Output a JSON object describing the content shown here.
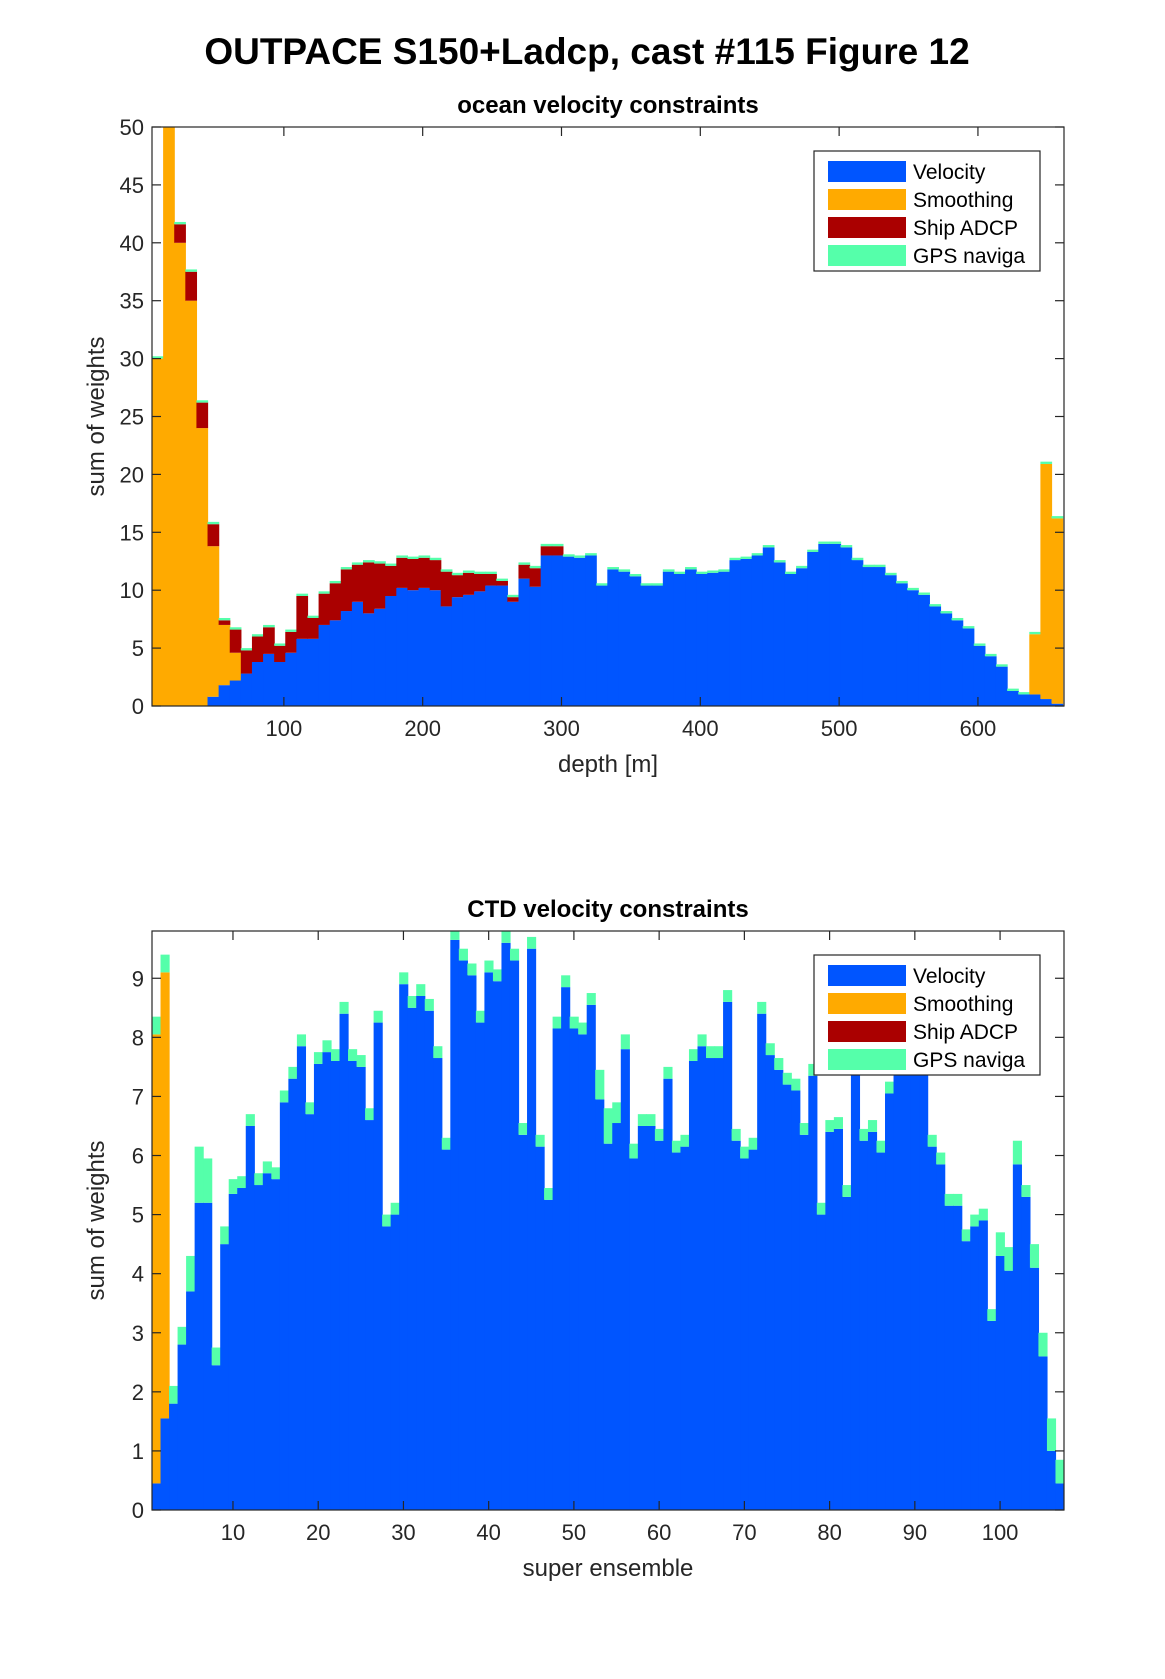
{
  "title": "OUTPACE S150+Ladcp, cast #115  Figure 12",
  "colors": {
    "Velocity": "#0055ff",
    "Smoothing": "#ffaa00",
    "Ship ADCP": "#aa0000",
    "GPS naviga": "#55ffaa"
  },
  "chart_data": [
    {
      "type": "bar",
      "stacked": true,
      "title": "ocean velocity constraints",
      "xlabel": "depth [m]",
      "ylabel": "sum of weights",
      "xlim": [
        5,
        662
      ],
      "ylim": [
        0,
        50
      ],
      "bar_width": 8,
      "xticks": [
        100,
        200,
        300,
        400,
        500,
        600
      ],
      "yticks": [
        0,
        5,
        10,
        15,
        20,
        25,
        30,
        35,
        40,
        45,
        50
      ],
      "legend": {
        "location": "top-right",
        "entries": [
          "Velocity",
          "Smoothing",
          "Ship ADCP",
          "GPS naviga"
        ]
      },
      "x": [
        9,
        17,
        25,
        33,
        41,
        49,
        57,
        65,
        73,
        81,
        89,
        97,
        105,
        113,
        121,
        129,
        137,
        145,
        153,
        161,
        169,
        177,
        185,
        193,
        201,
        209,
        217,
        225,
        233,
        241,
        249,
        257,
        265,
        273,
        281,
        289,
        297,
        305,
        313,
        321,
        329,
        337,
        345,
        353,
        361,
        369,
        377,
        385,
        393,
        401,
        409,
        417,
        425,
        433,
        441,
        449,
        457,
        465,
        473,
        481,
        489,
        497,
        505,
        513,
        521,
        529,
        537,
        545,
        553,
        561,
        569,
        577,
        585,
        593,
        601,
        609,
        617,
        625,
        633,
        641,
        649,
        657
      ],
      "series": [
        {
          "name": "Velocity",
          "values": [
            0,
            0,
            0,
            0,
            0,
            0.8,
            1.8,
            2.2,
            2.8,
            3.8,
            4.5,
            3.8,
            4.6,
            5.8,
            5.8,
            7.0,
            7.4,
            8.2,
            9.0,
            8.0,
            8.4,
            9.5,
            10.2,
            10.0,
            10.2,
            10.0,
            8.6,
            9.4,
            9.6,
            9.9,
            10.4,
            10.4,
            9.0,
            11.0,
            10.3,
            13.0,
            13.0,
            12.9,
            12.8,
            13.0,
            10.4,
            11.8,
            11.6,
            11.2,
            10.4,
            10.4,
            11.6,
            11.4,
            11.8,
            11.4,
            11.5,
            11.6,
            12.6,
            12.7,
            13.0,
            13.7,
            12.4,
            11.4,
            11.9,
            13.3,
            14.0,
            14.0,
            13.7,
            12.6,
            12.0,
            12.0,
            11.3,
            10.6,
            10.0,
            9.6,
            8.6,
            8.0,
            7.4,
            6.7,
            5.2,
            4.3,
            3.4,
            1.3,
            1.0,
            1.0,
            0.6,
            0.2
          ]
        },
        {
          "name": "Smoothing",
          "values": [
            30,
            50,
            40,
            35,
            24,
            13,
            5.2,
            2.4,
            0,
            0,
            0,
            0,
            0,
            0,
            0,
            0,
            0,
            0,
            0,
            0,
            0,
            0,
            0,
            0,
            0,
            0,
            0,
            0,
            0,
            0,
            0,
            0,
            0,
            0,
            0,
            0,
            0,
            0,
            0,
            0,
            0,
            0,
            0,
            0,
            0,
            0,
            0,
            0,
            0,
            0,
            0,
            0,
            0,
            0,
            0,
            0,
            0,
            0,
            0,
            0,
            0,
            0,
            0,
            0,
            0,
            0,
            0,
            0,
            0,
            0,
            0,
            0,
            0,
            0,
            0,
            0,
            0,
            0,
            0,
            5.2,
            20.3,
            16.0
          ]
        },
        {
          "name": "Ship ADCP",
          "values": [
            0,
            0,
            1.6,
            2.5,
            2.2,
            1.9,
            0.4,
            2.0,
            2.0,
            2.2,
            2.3,
            1.4,
            1.8,
            3.7,
            1.8,
            2.7,
            3.2,
            3.6,
            3.2,
            4.4,
            3.9,
            2.6,
            2.6,
            2.7,
            2.6,
            2.6,
            3.0,
            1.9,
            1.9,
            1.5,
            1.0,
            0.4,
            0.4,
            1.2,
            1.6,
            0.8,
            0.8,
            0,
            0,
            0,
            0,
            0,
            0,
            0,
            0,
            0,
            0,
            0,
            0,
            0,
            0,
            0,
            0,
            0,
            0,
            0,
            0,
            0,
            0,
            0,
            0,
            0,
            0,
            0,
            0,
            0,
            0,
            0,
            0,
            0,
            0,
            0,
            0,
            0,
            0,
            0,
            0,
            0,
            0,
            0,
            0,
            0
          ]
        },
        {
          "name": "GPS naviga",
          "values": [
            0.2,
            0.2,
            0.2,
            0.2,
            0.2,
            0.2,
            0.2,
            0.2,
            0.2,
            0.2,
            0.2,
            0.2,
            0.2,
            0.2,
            0.2,
            0.2,
            0.2,
            0.2,
            0.2,
            0.2,
            0.2,
            0.2,
            0.2,
            0.2,
            0.2,
            0.2,
            0.2,
            0.2,
            0.2,
            0.2,
            0.2,
            0.2,
            0.2,
            0.2,
            0.2,
            0.2,
            0.2,
            0.2,
            0.2,
            0.2,
            0.2,
            0.2,
            0.2,
            0.2,
            0.2,
            0.2,
            0.2,
            0.2,
            0.2,
            0.2,
            0.2,
            0.2,
            0.2,
            0.2,
            0.2,
            0.2,
            0.2,
            0.2,
            0.2,
            0.2,
            0.2,
            0.2,
            0.2,
            0.2,
            0.2,
            0.2,
            0.2,
            0.2,
            0.2,
            0.2,
            0.2,
            0.2,
            0.2,
            0.2,
            0.2,
            0.2,
            0.2,
            0.2,
            0.2,
            0.2,
            0.2,
            0.2
          ]
        }
      ]
    },
    {
      "type": "bar",
      "stacked": true,
      "title": "CTD velocity constraints",
      "xlabel": "super ensemble",
      "ylabel": "sum of weights",
      "xlim": [
        0.5,
        107.5
      ],
      "ylim": [
        0,
        9.8
      ],
      "bar_width": 1,
      "xticks": [
        10,
        20,
        30,
        40,
        50,
        60,
        70,
        80,
        90,
        100
      ],
      "yticks": [
        0,
        1,
        2,
        3,
        4,
        5,
        6,
        7,
        8,
        9
      ],
      "legend": {
        "location": "top-right",
        "entries": [
          "Velocity",
          "Smoothing",
          "Ship ADCP",
          "GPS naviga"
        ]
      },
      "x": [
        1,
        2,
        3,
        4,
        5,
        6,
        7,
        8,
        9,
        10,
        11,
        12,
        13,
        14,
        15,
        16,
        17,
        18,
        19,
        20,
        21,
        22,
        23,
        24,
        25,
        26,
        27,
        28,
        29,
        30,
        31,
        32,
        33,
        34,
        35,
        36,
        37,
        38,
        39,
        40,
        41,
        42,
        43,
        44,
        45,
        46,
        47,
        48,
        49,
        50,
        51,
        52,
        53,
        54,
        55,
        56,
        57,
        58,
        59,
        60,
        61,
        62,
        63,
        64,
        65,
        66,
        67,
        68,
        69,
        70,
        71,
        72,
        73,
        74,
        75,
        76,
        77,
        78,
        79,
        80,
        81,
        82,
        83,
        84,
        85,
        86,
        87,
        88,
        89,
        90,
        91,
        92,
        93,
        94,
        95,
        96,
        97,
        98,
        99,
        100,
        101,
        102,
        103,
        104,
        105,
        106,
        107
      ],
      "series": [
        {
          "name": "Velocity",
          "values": [
            0.45,
            1.55,
            1.8,
            2.8,
            3.7,
            5.2,
            5.2,
            2.45,
            4.5,
            5.35,
            5.45,
            6.5,
            5.5,
            5.7,
            5.6,
            6.9,
            7.3,
            7.85,
            6.7,
            7.55,
            7.75,
            7.6,
            8.4,
            7.6,
            7.5,
            6.6,
            8.25,
            4.8,
            5.0,
            8.9,
            8.5,
            8.7,
            8.45,
            7.65,
            6.1,
            9.65,
            9.3,
            9.05,
            8.25,
            9.1,
            8.95,
            9.6,
            9.3,
            6.35,
            9.5,
            6.15,
            5.25,
            8.15,
            8.85,
            8.15,
            8.05,
            8.55,
            6.95,
            6.2,
            6.55,
            7.8,
            5.95,
            6.5,
            6.5,
            6.25,
            7.3,
            6.05,
            6.15,
            7.6,
            7.85,
            7.65,
            7.65,
            8.6,
            6.25,
            5.95,
            6.1,
            8.4,
            7.7,
            7.45,
            7.2,
            7.1,
            6.35,
            7.35,
            5.0,
            6.4,
            6.45,
            5.3,
            8.75,
            6.25,
            6.4,
            6.05,
            7.05,
            7.6,
            7.5,
            7.95,
            8.25,
            6.15,
            5.85,
            5.15,
            5.15,
            4.55,
            4.8,
            4.9,
            3.2,
            4.3,
            4.05,
            5.85,
            5.3,
            4.1,
            2.6,
            1.0,
            0.45
          ]
        },
        {
          "name": "Smoothing",
          "values": [
            7.6,
            7.55,
            0,
            0,
            0,
            0,
            0,
            0,
            0,
            0,
            0,
            0,
            0,
            0,
            0,
            0,
            0,
            0,
            0,
            0,
            0,
            0,
            0,
            0,
            0,
            0,
            0,
            0,
            0,
            0,
            0,
            0,
            0,
            0,
            0,
            0,
            0,
            0,
            0,
            0,
            0,
            0,
            0,
            0,
            0,
            0,
            0,
            0,
            0,
            0,
            0,
            0,
            0,
            0,
            0,
            0,
            0,
            0,
            0,
            0,
            0,
            0,
            0,
            0,
            0,
            0,
            0,
            0,
            0,
            0,
            0,
            0,
            0,
            0,
            0,
            0,
            0,
            0,
            0,
            0,
            0,
            0,
            0,
            0,
            0,
            0,
            0,
            0,
            0,
            0,
            0,
            0,
            0,
            0,
            0,
            0,
            0,
            0,
            0,
            0,
            0,
            0,
            0,
            0,
            0,
            0,
            0
          ]
        },
        {
          "name": "Ship ADCP",
          "values": [
            0,
            0,
            0,
            0,
            0,
            0,
            0,
            0,
            0,
            0,
            0,
            0,
            0,
            0,
            0,
            0,
            0,
            0,
            0,
            0,
            0,
            0,
            0,
            0,
            0,
            0,
            0,
            0,
            0,
            0,
            0,
            0,
            0,
            0,
            0,
            0,
            0,
            0,
            0,
            0,
            0,
            0,
            0,
            0,
            0,
            0,
            0,
            0,
            0,
            0,
            0,
            0,
            0,
            0,
            0,
            0,
            0,
            0,
            0,
            0,
            0,
            0,
            0,
            0,
            0,
            0,
            0,
            0,
            0,
            0,
            0,
            0,
            0,
            0,
            0,
            0,
            0,
            0,
            0,
            0,
            0,
            0,
            0,
            0,
            0,
            0,
            0,
            0,
            0,
            0,
            0,
            0,
            0,
            0,
            0,
            0,
            0,
            0,
            0,
            0,
            0,
            0,
            0,
            0,
            0,
            0,
            0
          ]
        },
        {
          "name": "GPS naviga",
          "values": [
            0.3,
            0.3,
            0.3,
            0.3,
            0.6,
            0.95,
            0.75,
            0.3,
            0.3,
            0.25,
            0.2,
            0.2,
            0.2,
            0.2,
            0.2,
            0.2,
            0.2,
            0.2,
            0.2,
            0.2,
            0.2,
            0.2,
            0.2,
            0.2,
            0.2,
            0.2,
            0.2,
            0.2,
            0.2,
            0.2,
            0.2,
            0.2,
            0.2,
            0.2,
            0.2,
            0.2,
            0.2,
            0.2,
            0.2,
            0.2,
            0.2,
            0.2,
            0.2,
            0.2,
            0.2,
            0.2,
            0.2,
            0.2,
            0.2,
            0.2,
            0.2,
            0.2,
            0.5,
            0.6,
            0.35,
            0.25,
            0.25,
            0.2,
            0.2,
            0.2,
            0.2,
            0.2,
            0.2,
            0.2,
            0.2,
            0.2,
            0.2,
            0.2,
            0.2,
            0.2,
            0.2,
            0.2,
            0.2,
            0.2,
            0.2,
            0.2,
            0.2,
            0.2,
            0.2,
            0.2,
            0.2,
            0.2,
            0.2,
            0.2,
            0.2,
            0.2,
            0.2,
            0.2,
            0.2,
            0.2,
            0.2,
            0.2,
            0.2,
            0.2,
            0.2,
            0.2,
            0.2,
            0.2,
            0.2,
            0.4,
            0.4,
            0.4,
            0.2,
            0.4,
            0.4,
            0.55,
            0.4
          ]
        }
      ]
    }
  ]
}
